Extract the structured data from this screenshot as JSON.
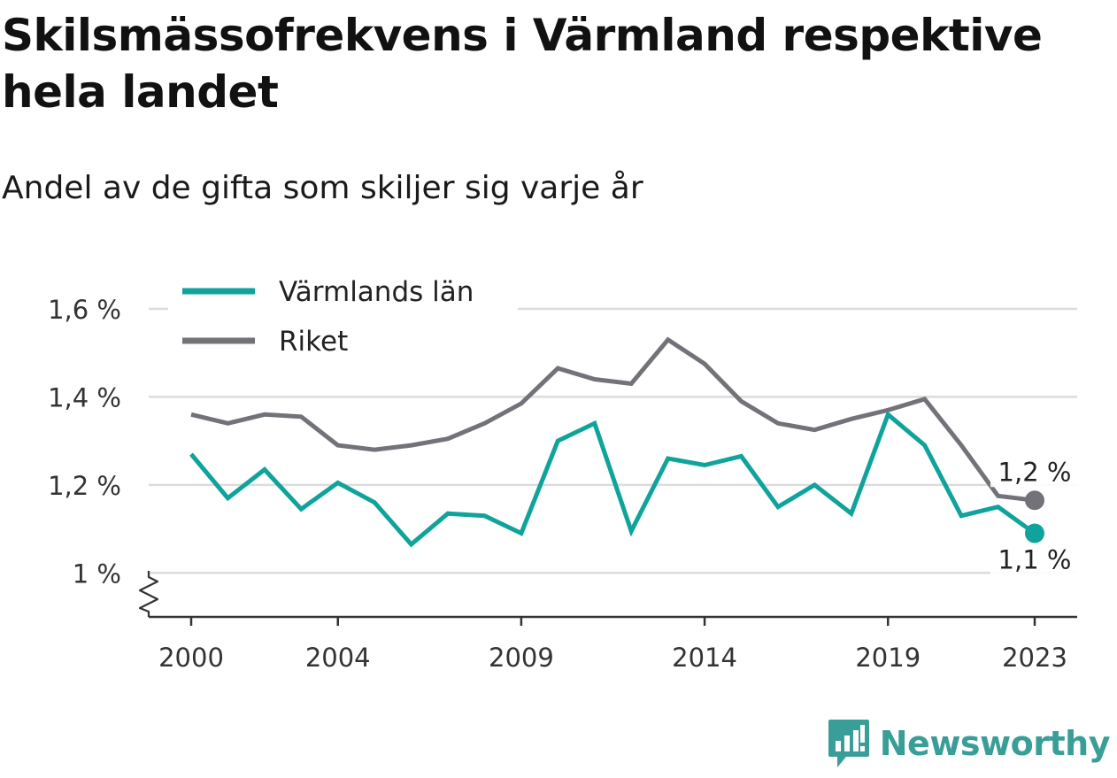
{
  "title": "Skilsmässofrekvens i Värmland respektive hela landet",
  "subtitle": "Andel av de gifta som skiljer sig varje år",
  "brand": {
    "name": "Newsworthy",
    "color": "#3a9e98",
    "icon": "newsworthy-logo-icon"
  },
  "chart_data": {
    "type": "line",
    "title": "Skilsmässofrekvens i Värmland respektive hela landet",
    "subtitle": "Andel av de gifta som skiljer sig varje år",
    "xlabel": "",
    "ylabel": "",
    "x": [
      2000,
      2001,
      2002,
      2003,
      2004,
      2005,
      2006,
      2007,
      2008,
      2009,
      2010,
      2011,
      2012,
      2013,
      2014,
      2015,
      2016,
      2017,
      2018,
      2019,
      2020,
      2021,
      2022,
      2023
    ],
    "x_ticks": [
      2000,
      2004,
      2009,
      2014,
      2019,
      2023
    ],
    "x_tick_labels": [
      "2000",
      "2004",
      "2009",
      "2014",
      "2019",
      "2023"
    ],
    "ylim": [
      0.9,
      1.6
    ],
    "y_ticks": [
      1.0,
      1.2,
      1.4,
      1.6
    ],
    "y_tick_labels": [
      "1 %",
      "1,2 %",
      "1,4 %",
      "1,6 %"
    ],
    "y_axis_break": true,
    "grid": true,
    "legend_position": "top-left",
    "series": [
      {
        "name": "Värmlands län",
        "color": "#0fa39c",
        "values": [
          1.27,
          1.17,
          1.235,
          1.145,
          1.205,
          1.16,
          1.065,
          1.135,
          1.13,
          1.09,
          1.3,
          1.34,
          1.095,
          1.26,
          1.245,
          1.265,
          1.15,
          1.2,
          1.135,
          1.36,
          1.29,
          1.13,
          1.15,
          1.09
        ],
        "end_label": "1,1 %"
      },
      {
        "name": "Riket",
        "color": "#737279",
        "values": [
          1.36,
          1.34,
          1.36,
          1.355,
          1.29,
          1.28,
          1.29,
          1.305,
          1.34,
          1.385,
          1.465,
          1.44,
          1.43,
          1.53,
          1.475,
          1.39,
          1.34,
          1.325,
          1.35,
          1.37,
          1.395,
          1.29,
          1.175,
          1.165
        ],
        "end_label": "1,2 %"
      }
    ]
  }
}
